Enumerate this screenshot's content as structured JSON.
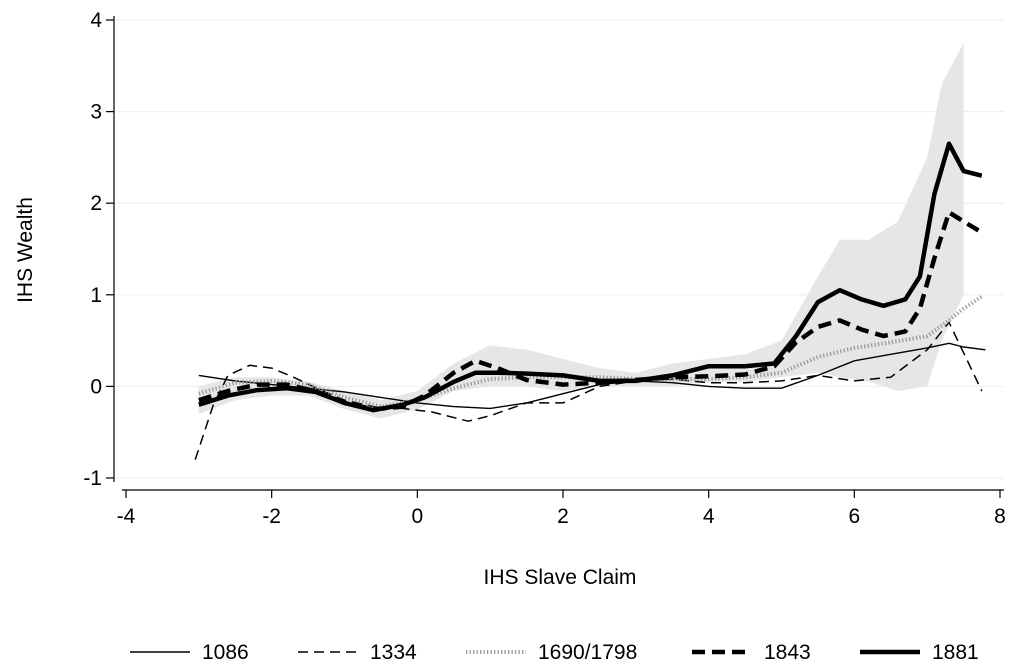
{
  "chart_data": {
    "type": "line",
    "title": "",
    "xlabel": "IHS Slave Claim",
    "ylabel": "IHS Wealth",
    "xlim": [
      -4,
      8
    ],
    "ylim": [
      -1,
      4
    ],
    "xticks": [
      -4,
      -2,
      0,
      2,
      4,
      6,
      8
    ],
    "yticks": [
      -1,
      0,
      1,
      2,
      3,
      4
    ],
    "xtick_labels": [
      "-4",
      "-2",
      "0",
      "2",
      "4",
      "6",
      "8"
    ],
    "ytick_labels": [
      "-1",
      "0",
      "1",
      "2",
      "3",
      "4"
    ],
    "grid": true,
    "legend_position": "bottom",
    "confidence_band": {
      "color": "#e6e6e6",
      "x": [
        -3.0,
        -2.5,
        -2.0,
        -1.5,
        -1.0,
        -0.5,
        0.0,
        0.5,
        1.0,
        1.5,
        2.0,
        2.5,
        3.0,
        3.5,
        4.0,
        4.5,
        5.0,
        5.5,
        5.8,
        6.2,
        6.6,
        7.0,
        7.2,
        7.5
      ],
      "lower": [
        -0.3,
        -0.15,
        -0.1,
        -0.1,
        -0.25,
        -0.35,
        -0.25,
        -0.05,
        0.0,
        0.0,
        -0.05,
        0.0,
        0.0,
        0.0,
        0.05,
        0.05,
        0.1,
        0.15,
        0.1,
        0.05,
        -0.05,
        0.0,
        0.5,
        1.0
      ],
      "upper": [
        0.0,
        0.1,
        0.1,
        0.05,
        -0.05,
        -0.15,
        -0.05,
        0.25,
        0.45,
        0.4,
        0.3,
        0.2,
        0.15,
        0.25,
        0.3,
        0.35,
        0.5,
        1.2,
        1.6,
        1.6,
        1.8,
        2.5,
        3.3,
        3.75
      ]
    },
    "series": [
      {
        "name": "1086",
        "color": "#000000",
        "style": "thin-solid",
        "x": [
          -3.0,
          -2.5,
          -2.0,
          -1.5,
          -1.0,
          -0.5,
          0.0,
          0.5,
          1.0,
          1.5,
          2.0,
          2.5,
          3.0,
          3.5,
          4.0,
          4.5,
          5.0,
          5.5,
          6.0,
          6.5,
          7.0,
          7.3,
          7.5,
          7.8
        ],
        "y": [
          0.12,
          0.06,
          0.02,
          -0.02,
          -0.06,
          -0.12,
          -0.18,
          -0.22,
          -0.24,
          -0.18,
          -0.08,
          0.02,
          0.06,
          0.04,
          0.0,
          -0.02,
          -0.02,
          0.12,
          0.28,
          0.35,
          0.42,
          0.47,
          0.43,
          0.4
        ]
      },
      {
        "name": "1334",
        "color": "#000000",
        "style": "dashed",
        "x": [
          -3.05,
          -2.8,
          -2.6,
          -2.3,
          -2.0,
          -1.7,
          -1.3,
          -1.0,
          -0.6,
          -0.2,
          0.2,
          0.7,
          1.0,
          1.5,
          2.0,
          2.5,
          3.0,
          3.5,
          4.0,
          4.5,
          5.0,
          5.5,
          6.0,
          6.5,
          7.0,
          7.3,
          7.6,
          7.75
        ],
        "y": [
          -0.8,
          -0.2,
          0.12,
          0.23,
          0.2,
          0.1,
          -0.05,
          -0.15,
          -0.22,
          -0.24,
          -0.28,
          -0.38,
          -0.32,
          -0.18,
          -0.18,
          0.0,
          0.06,
          0.08,
          0.04,
          0.04,
          0.06,
          0.12,
          0.06,
          0.1,
          0.4,
          0.7,
          0.2,
          -0.05
        ]
      },
      {
        "name": "1690/1798",
        "color": "#999999",
        "style": "dotted",
        "x": [
          -3.0,
          -2.5,
          -2.0,
          -1.5,
          -1.0,
          -0.5,
          0.0,
          0.5,
          1.0,
          1.5,
          2.0,
          2.5,
          3.0,
          3.5,
          4.0,
          4.5,
          5.0,
          5.5,
          6.0,
          6.5,
          7.0,
          7.3,
          7.5,
          7.75
        ],
        "y": [
          -0.08,
          0.04,
          0.06,
          0.02,
          -0.12,
          -0.22,
          -0.15,
          -0.02,
          0.08,
          0.1,
          0.1,
          0.1,
          0.08,
          0.08,
          0.08,
          0.1,
          0.15,
          0.32,
          0.42,
          0.48,
          0.55,
          0.72,
          0.85,
          0.98
        ]
      },
      {
        "name": "1843",
        "color": "#000000",
        "style": "thick-dashed",
        "x": [
          -3.0,
          -2.6,
          -2.2,
          -1.8,
          -1.4,
          -1.0,
          -0.6,
          -0.2,
          0.1,
          0.5,
          0.8,
          1.1,
          1.5,
          2.0,
          2.5,
          3.0,
          3.5,
          4.0,
          4.5,
          4.9,
          5.2,
          5.5,
          5.8,
          6.1,
          6.4,
          6.7,
          6.9,
          7.1,
          7.3,
          7.5,
          7.75
        ],
        "y": [
          -0.15,
          -0.05,
          0.02,
          0.02,
          -0.05,
          -0.18,
          -0.25,
          -0.22,
          -0.1,
          0.15,
          0.28,
          0.2,
          0.07,
          0.02,
          0.04,
          0.07,
          0.1,
          0.11,
          0.13,
          0.22,
          0.48,
          0.65,
          0.72,
          0.62,
          0.55,
          0.6,
          0.85,
          1.4,
          1.9,
          1.8,
          1.68
        ]
      },
      {
        "name": "1881",
        "color": "#000000",
        "style": "thick-solid",
        "x": [
          -3.0,
          -2.6,
          -2.2,
          -1.8,
          -1.4,
          -1.0,
          -0.6,
          -0.2,
          0.1,
          0.5,
          0.8,
          1.1,
          1.5,
          2.0,
          2.5,
          3.0,
          3.5,
          4.0,
          4.5,
          4.9,
          5.2,
          5.5,
          5.8,
          6.1,
          6.4,
          6.7,
          6.9,
          7.1,
          7.3,
          7.5,
          7.75
        ],
        "y": [
          -0.2,
          -0.1,
          -0.04,
          -0.02,
          -0.06,
          -0.18,
          -0.26,
          -0.2,
          -0.12,
          0.05,
          0.15,
          0.15,
          0.14,
          0.12,
          0.06,
          0.06,
          0.12,
          0.22,
          0.22,
          0.25,
          0.55,
          0.92,
          1.05,
          0.95,
          0.88,
          0.95,
          1.2,
          2.1,
          2.65,
          2.35,
          2.3
        ]
      }
    ]
  }
}
